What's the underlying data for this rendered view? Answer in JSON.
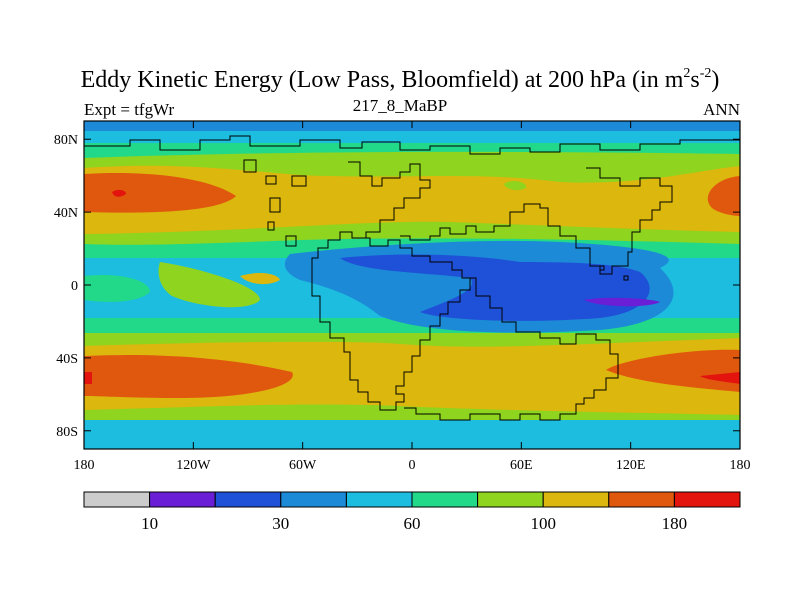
{
  "title": {
    "main": "Eddy Kinetic Energy (Low Pass, Bloomfield) at 200 hPa (in m",
    "unit_sup1": "2",
    "unit_mid": "s",
    "unit_sup2": "-2",
    "unit_end": ")"
  },
  "left_label": "Expt = tfgWr",
  "center_label": "217_8_MaBP",
  "right_label": "ANN",
  "chart_data": {
    "type": "heatmap",
    "variable": "Eddy Kinetic Energy (Low Pass, Bloomfield)",
    "level": "200 hPa",
    "units": "m2 s-2",
    "experiment": "tfgWr",
    "case": "217_8_MaBP",
    "season": "ANN",
    "x_range": [
      -180,
      180
    ],
    "y_range": [
      -90,
      90
    ],
    "x_ticks": [
      {
        "value": -180,
        "label": "180"
      },
      {
        "value": -120,
        "label": "120W"
      },
      {
        "value": -60,
        "label": "60W"
      },
      {
        "value": 0,
        "label": "0"
      },
      {
        "value": 60,
        "label": "60E"
      },
      {
        "value": 120,
        "label": "120E"
      },
      {
        "value": 180,
        "label": "180"
      }
    ],
    "y_ticks": [
      {
        "value": 80,
        "label": "80N"
      },
      {
        "value": 40,
        "label": "40N"
      },
      {
        "value": 0,
        "label": "0"
      },
      {
        "value": -40,
        "label": "40S"
      },
      {
        "value": -80,
        "label": "80S"
      }
    ],
    "contour_levels": [
      10,
      20,
      30,
      45,
      60,
      80,
      100,
      140,
      180
    ],
    "colorbar_labels": [
      {
        "level": 10,
        "label": "10"
      },
      {
        "level": 30,
        "label": "30"
      },
      {
        "level": 60,
        "label": "60"
      },
      {
        "level": 100,
        "label": "100"
      },
      {
        "level": 180,
        "label": "180"
      }
    ],
    "colors": [
      "#cccccc",
      "#6a1fd6",
      "#1f50d8",
      "#1c8ad6",
      "#1dbde0",
      "#22d98a",
      "#8fd41e",
      "#dcb70e",
      "#e0580e",
      "#e3130e"
    ]
  }
}
